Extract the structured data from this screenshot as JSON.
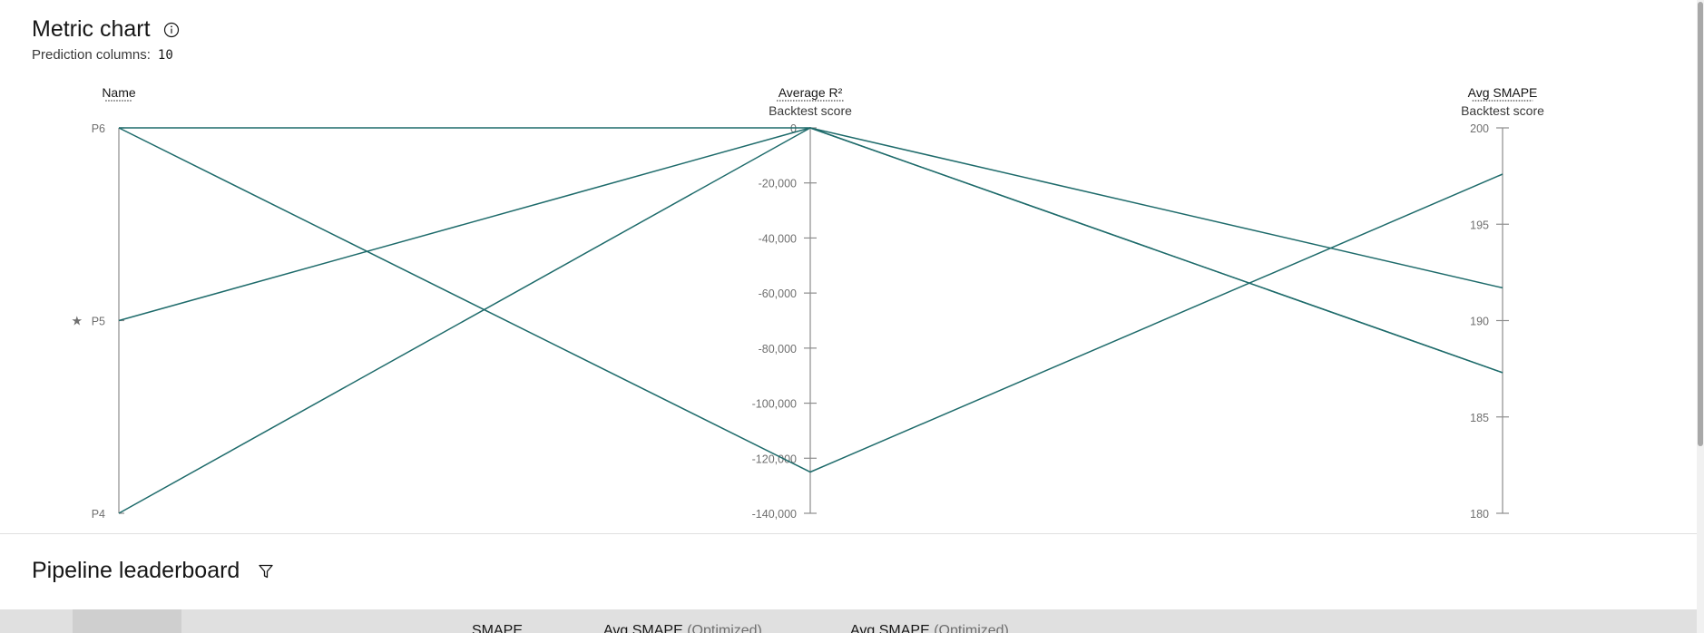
{
  "metric_chart": {
    "title": "Metric chart",
    "info_icon": "info-icon",
    "prediction_columns_label": "Prediction columns:",
    "prediction_columns_value": "10"
  },
  "chart_data": {
    "type": "parallel-coordinates",
    "axes": [
      {
        "key": "name",
        "label": "Name",
        "sublabel": "",
        "type": "categorical",
        "ticks": [
          "P6",
          "P5",
          "P4"
        ],
        "starred": "P5"
      },
      {
        "key": "avg_r2",
        "label": "Average R²",
        "sublabel": "Backtest score",
        "type": "numeric",
        "range": [
          -140000,
          0
        ],
        "ticks": [
          0,
          -20000,
          -40000,
          -60000,
          -80000,
          -100000,
          -120000,
          -140000
        ],
        "tick_labels": [
          "0",
          "-20,000",
          "-40,000",
          "-60,000",
          "-80,000",
          "-100,000",
          "-120,000",
          "-140,000"
        ]
      },
      {
        "key": "avg_smape",
        "label": "Avg SMAPE",
        "sublabel": "Backtest score",
        "type": "numeric",
        "range": [
          180,
          200
        ],
        "ticks": [
          200,
          195,
          190,
          185,
          180
        ],
        "tick_labels": [
          "200",
          "195",
          "190",
          "185",
          "180"
        ]
      }
    ],
    "series": [
      {
        "values": [
          "P6",
          -125000,
          197.6
        ]
      },
      {
        "values": [
          "P5",
          0,
          191.7
        ]
      },
      {
        "values": [
          "P4",
          0,
          187.3
        ]
      },
      {
        "values": [
          "P6",
          0,
          187.3
        ]
      }
    ],
    "line_color": "#1e6b6b"
  },
  "leaderboard": {
    "title": "Pipeline leaderboard",
    "filter_icon": "filter-icon",
    "columns": [
      {
        "label": "SMAPE",
        "qualifier": ""
      },
      {
        "label": "Avg SMAPE",
        "qualifier": "(Optimized)"
      },
      {
        "label": "Avg SMAPE",
        "qualifier": "(Optimized)"
      }
    ]
  }
}
